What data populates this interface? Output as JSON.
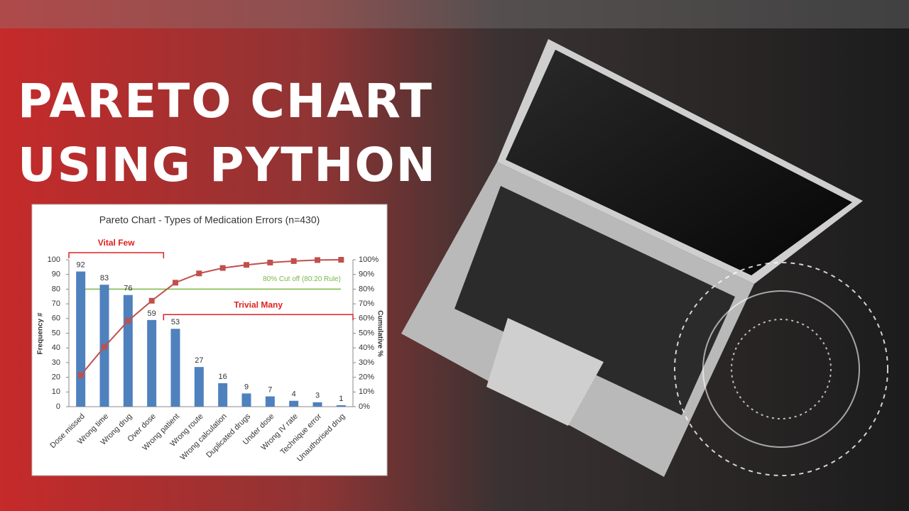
{
  "headline": [
    "PARETO CHART",
    "USING PYTHON"
  ],
  "chart_data": {
    "type": "bar",
    "title": "Pareto Chart - Types of Medication Errors (n=430)",
    "ylabel": "Frequency #",
    "y2label": "Cumulative %",
    "categories": [
      "Dose missed",
      "Wrong time",
      "Wrong drug",
      "Over dose",
      "Wrong patient",
      "Wrong route",
      "Wrong calculation",
      "Duplicated drugs",
      "Under dose",
      "Wrong IV rate",
      "Technique error",
      "Unauthorised drug"
    ],
    "series": [
      {
        "type": "bar",
        "color": "#4f81bd",
        "values": [
          92,
          83,
          76,
          59,
          53,
          27,
          16,
          9,
          7,
          4,
          3,
          1
        ],
        "show_values": true
      },
      {
        "type": "line",
        "axis": "y2",
        "color": "#c0504d",
        "values": [
          21.4,
          40.7,
          58.4,
          72.1,
          84.4,
          90.7,
          94.4,
          96.5,
          98.1,
          99.1,
          99.8,
          100
        ]
      }
    ],
    "ylim": [
      0,
      100
    ],
    "yticks": [
      0,
      10,
      20,
      30,
      40,
      50,
      60,
      70,
      80,
      90,
      100
    ],
    "y2lim": [
      0,
      100
    ],
    "y2ticks": [
      {
        "value": 0,
        "label": "0%"
      },
      {
        "value": 10,
        "label": "10%"
      },
      {
        "value": 20,
        "label": "20%"
      },
      {
        "value": 30,
        "label": "30%"
      },
      {
        "value": 40,
        "label": "40%"
      },
      {
        "value": 50,
        "label": "50%"
      },
      {
        "value": 60,
        "label": "60%"
      },
      {
        "value": 70,
        "label": "70%"
      },
      {
        "value": 80,
        "label": "80%"
      },
      {
        "value": 90,
        "label": "90%"
      },
      {
        "value": 100,
        "label": "100%"
      }
    ],
    "cutoff": {
      "value": 80,
      "axis": "y2",
      "label": "80% Cut off  (80:20 Rule)",
      "color": "#7ab648"
    },
    "groups": [
      {
        "label": "Vital Few",
        "span": [
          0,
          3
        ],
        "color": "#e02020"
      },
      {
        "label": "Trivial Many",
        "span": [
          4,
          11
        ],
        "color": "#e02020"
      }
    ]
  }
}
